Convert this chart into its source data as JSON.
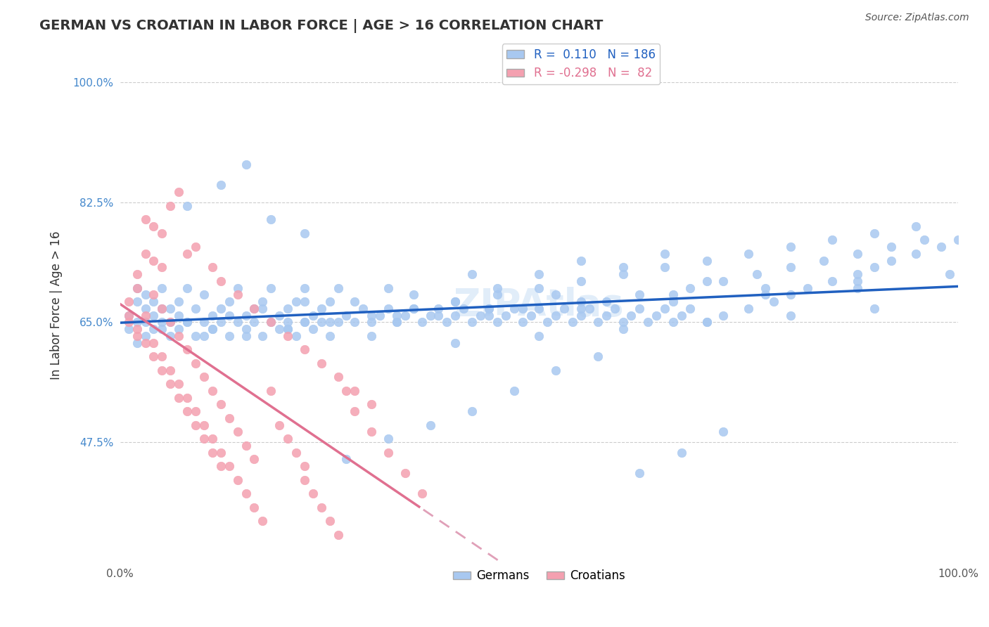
{
  "title": "GERMAN VS CROATIAN IN LABOR FORCE | AGE > 16 CORRELATION CHART",
  "source": "Source: ZipAtlas.com",
  "xlabel": "",
  "ylabel": "In Labor Force | Age > 16",
  "xlim": [
    0.0,
    1.0
  ],
  "ylim": [
    0.3,
    1.05
  ],
  "yticks": [
    0.475,
    0.65,
    0.825,
    1.0
  ],
  "ytick_labels": [
    "47.5%",
    "65.0%",
    "82.5%",
    "100.0%"
  ],
  "xticks": [
    0.0,
    0.25,
    0.5,
    0.75,
    1.0
  ],
  "xtick_labels": [
    "0.0%",
    "",
    "",
    "",
    "100.0%"
  ],
  "german_color": "#a8c8f0",
  "croatian_color": "#f4a0b0",
  "german_line_color": "#2060c0",
  "croatian_line_color": "#e07090",
  "croatian_dashed_color": "#e0a0b8",
  "legend_german_label": "Germans",
  "legend_croatian_label": "Croatians",
  "R_german": 0.11,
  "N_german": 186,
  "R_croatian": -0.298,
  "N_croatian": 82,
  "background_color": "#ffffff",
  "grid_color": "#cccccc",
  "watermark_text": "ZIPAtlas",
  "german_x": [
    0.01,
    0.01,
    0.02,
    0.02,
    0.02,
    0.02,
    0.03,
    0.03,
    0.03,
    0.03,
    0.04,
    0.04,
    0.04,
    0.05,
    0.05,
    0.05,
    0.06,
    0.06,
    0.06,
    0.07,
    0.07,
    0.07,
    0.08,
    0.08,
    0.09,
    0.09,
    0.1,
    0.1,
    0.11,
    0.11,
    0.12,
    0.12,
    0.13,
    0.13,
    0.14,
    0.14,
    0.15,
    0.15,
    0.16,
    0.16,
    0.17,
    0.17,
    0.18,
    0.18,
    0.19,
    0.19,
    0.2,
    0.2,
    0.21,
    0.21,
    0.22,
    0.22,
    0.23,
    0.23,
    0.24,
    0.24,
    0.25,
    0.25,
    0.26,
    0.26,
    0.27,
    0.28,
    0.29,
    0.3,
    0.31,
    0.32,
    0.33,
    0.34,
    0.35,
    0.36,
    0.37,
    0.38,
    0.39,
    0.4,
    0.41,
    0.42,
    0.43,
    0.44,
    0.45,
    0.46,
    0.47,
    0.48,
    0.49,
    0.5,
    0.51,
    0.52,
    0.53,
    0.54,
    0.55,
    0.56,
    0.57,
    0.58,
    0.59,
    0.6,
    0.61,
    0.62,
    0.63,
    0.64,
    0.65,
    0.66,
    0.67,
    0.68,
    0.7,
    0.72,
    0.75,
    0.78,
    0.8,
    0.82,
    0.85,
    0.88,
    0.9,
    0.92,
    0.95,
    0.98,
    1.0,
    0.45,
    0.5,
    0.55,
    0.6,
    0.65,
    0.7,
    0.35,
    0.4,
    0.22,
    0.18,
    0.08,
    0.12,
    0.15,
    0.48,
    0.52,
    0.38,
    0.28,
    0.32,
    0.42,
    0.58,
    0.62,
    0.68,
    0.72,
    0.76,
    0.8,
    0.84,
    0.88,
    0.92,
    0.96,
    0.15,
    0.2,
    0.25,
    0.3,
    0.35,
    0.4,
    0.45,
    0.5,
    0.55,
    0.6,
    0.65,
    0.7,
    0.75,
    0.8,
    0.85,
    0.9,
    0.95,
    0.33,
    0.44,
    0.55,
    0.66,
    0.77,
    0.88,
    0.11,
    0.22,
    0.33,
    0.44,
    0.55,
    0.66,
    0.77,
    0.88,
    0.99,
    0.5,
    0.6,
    0.7,
    0.8,
    0.9,
    0.4,
    0.3,
    0.2,
    0.1,
    0.05,
    0.08,
    0.13,
    0.17,
    0.22,
    0.27,
    0.32,
    0.37,
    0.42,
    0.47,
    0.52,
    0.57,
    0.62,
    0.67,
    0.72
  ],
  "german_y": [
    0.64,
    0.66,
    0.62,
    0.65,
    0.68,
    0.7,
    0.63,
    0.67,
    0.65,
    0.69,
    0.64,
    0.66,
    0.68,
    0.65,
    0.67,
    0.7,
    0.63,
    0.65,
    0.67,
    0.64,
    0.66,
    0.68,
    0.65,
    0.7,
    0.63,
    0.67,
    0.65,
    0.69,
    0.64,
    0.66,
    0.65,
    0.67,
    0.63,
    0.68,
    0.65,
    0.7,
    0.64,
    0.66,
    0.65,
    0.67,
    0.63,
    0.68,
    0.65,
    0.7,
    0.64,
    0.66,
    0.65,
    0.67,
    0.63,
    0.68,
    0.65,
    0.7,
    0.64,
    0.66,
    0.65,
    0.67,
    0.63,
    0.68,
    0.65,
    0.7,
    0.66,
    0.65,
    0.67,
    0.65,
    0.66,
    0.67,
    0.65,
    0.66,
    0.67,
    0.65,
    0.66,
    0.67,
    0.65,
    0.66,
    0.67,
    0.65,
    0.66,
    0.67,
    0.65,
    0.66,
    0.67,
    0.65,
    0.66,
    0.67,
    0.65,
    0.66,
    0.67,
    0.65,
    0.66,
    0.67,
    0.65,
    0.66,
    0.67,
    0.65,
    0.66,
    0.67,
    0.65,
    0.66,
    0.67,
    0.65,
    0.66,
    0.67,
    0.65,
    0.66,
    0.67,
    0.68,
    0.69,
    0.7,
    0.71,
    0.72,
    0.73,
    0.74,
    0.75,
    0.76,
    0.77,
    0.7,
    0.72,
    0.74,
    0.73,
    0.75,
    0.71,
    0.69,
    0.68,
    0.78,
    0.8,
    0.82,
    0.85,
    0.88,
    0.67,
    0.69,
    0.66,
    0.68,
    0.7,
    0.72,
    0.68,
    0.69,
    0.7,
    0.71,
    0.72,
    0.73,
    0.74,
    0.75,
    0.76,
    0.77,
    0.63,
    0.64,
    0.65,
    0.66,
    0.67,
    0.68,
    0.69,
    0.7,
    0.71,
    0.72,
    0.73,
    0.74,
    0.75,
    0.76,
    0.77,
    0.78,
    0.79,
    0.65,
    0.66,
    0.67,
    0.68,
    0.69,
    0.7,
    0.64,
    0.65,
    0.66,
    0.67,
    0.68,
    0.69,
    0.7,
    0.71,
    0.72,
    0.63,
    0.64,
    0.65,
    0.66,
    0.67,
    0.62,
    0.63,
    0.64,
    0.63,
    0.64,
    0.65,
    0.66,
    0.67,
    0.68,
    0.45,
    0.48,
    0.5,
    0.52,
    0.55,
    0.58,
    0.6,
    0.43,
    0.46,
    0.49
  ],
  "croatian_x": [
    0.01,
    0.01,
    0.02,
    0.02,
    0.02,
    0.03,
    0.03,
    0.04,
    0.04,
    0.04,
    0.05,
    0.05,
    0.05,
    0.06,
    0.06,
    0.07,
    0.07,
    0.08,
    0.08,
    0.09,
    0.09,
    0.1,
    0.1,
    0.11,
    0.11,
    0.12,
    0.12,
    0.13,
    0.13,
    0.14,
    0.14,
    0.15,
    0.15,
    0.16,
    0.16,
    0.17,
    0.18,
    0.19,
    0.2,
    0.21,
    0.22,
    0.22,
    0.23,
    0.24,
    0.25,
    0.26,
    0.27,
    0.28,
    0.3,
    0.32,
    0.34,
    0.36,
    0.05,
    0.03,
    0.08,
    0.11,
    0.06,
    0.09,
    0.07,
    0.04,
    0.12,
    0.14,
    0.16,
    0.18,
    0.2,
    0.22,
    0.24,
    0.26,
    0.28,
    0.3,
    0.01,
    0.02,
    0.03,
    0.04,
    0.05,
    0.06,
    0.07,
    0.08,
    0.09,
    0.1,
    0.11,
    0.12
  ],
  "croatian_y": [
    0.65,
    0.68,
    0.7,
    0.63,
    0.72,
    0.66,
    0.75,
    0.62,
    0.69,
    0.74,
    0.6,
    0.67,
    0.73,
    0.58,
    0.65,
    0.56,
    0.63,
    0.54,
    0.61,
    0.52,
    0.59,
    0.5,
    0.57,
    0.48,
    0.55,
    0.46,
    0.53,
    0.44,
    0.51,
    0.42,
    0.49,
    0.4,
    0.47,
    0.38,
    0.45,
    0.36,
    0.55,
    0.5,
    0.48,
    0.46,
    0.44,
    0.42,
    0.4,
    0.38,
    0.36,
    0.34,
    0.55,
    0.52,
    0.49,
    0.46,
    0.43,
    0.4,
    0.78,
    0.8,
    0.75,
    0.73,
    0.82,
    0.76,
    0.84,
    0.79,
    0.71,
    0.69,
    0.67,
    0.65,
    0.63,
    0.61,
    0.59,
    0.57,
    0.55,
    0.53,
    0.66,
    0.64,
    0.62,
    0.6,
    0.58,
    0.56,
    0.54,
    0.52,
    0.5,
    0.48,
    0.46,
    0.44
  ]
}
